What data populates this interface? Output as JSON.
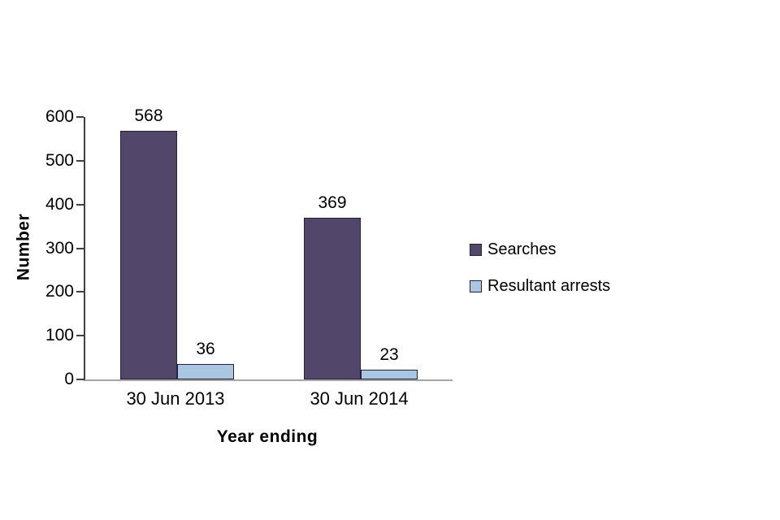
{
  "chart_data": {
    "type": "bar",
    "title": "",
    "categories": [
      "30 Jun 2013",
      "30 Jun 2014"
    ],
    "series": [
      {
        "name": "Searches",
        "values": [
          568,
          369
        ],
        "color": "#52476b"
      },
      {
        "name": "Resultant arrests",
        "values": [
          36,
          23
        ],
        "color": "#a9c7e2"
      }
    ],
    "xlabel": "Year ending",
    "ylabel": "Number",
    "ylim": [
      0,
      600
    ],
    "ytick_step": 100,
    "grid": false,
    "legend_position": "right",
    "data_labels_shown": true,
    "bar_border_color": "#26203a",
    "axis_line_color": "#404040"
  }
}
